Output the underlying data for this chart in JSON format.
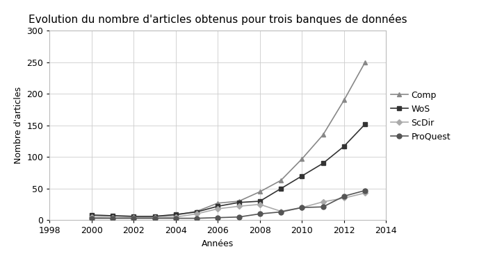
{
  "title": "Evolution du nombre d'articles obtenus pour trois banques de données",
  "xlabel": "Années",
  "ylabel": "Nombre d'articles",
  "years": [
    2000,
    2001,
    2002,
    2003,
    2004,
    2005,
    2006,
    2007,
    2008,
    2009,
    2010,
    2011,
    2012,
    2013
  ],
  "Comp": [
    8,
    7,
    6,
    6,
    8,
    14,
    27,
    30,
    45,
    63,
    97,
    135,
    190,
    250
  ],
  "WoS": [
    8,
    7,
    6,
    6,
    9,
    13,
    22,
    28,
    30,
    50,
    70,
    90,
    117,
    152
  ],
  "ScDir": [
    5,
    4,
    4,
    4,
    5,
    10,
    18,
    22,
    25,
    14,
    20,
    29,
    35,
    43
  ],
  "ProQuest": [
    3,
    3,
    3,
    3,
    3,
    3,
    4,
    5,
    10,
    13,
    20,
    21,
    38,
    47
  ],
  "xlim": [
    1998,
    2014
  ],
  "ylim": [
    0,
    300
  ],
  "yticks": [
    0,
    50,
    100,
    150,
    200,
    250,
    300
  ],
  "xticks": [
    1998,
    2000,
    2002,
    2004,
    2006,
    2008,
    2010,
    2012,
    2014
  ],
  "color_comp": "#888888",
  "color_wos": "#333333",
  "color_scdir": "#aaaaaa",
  "color_proquest": "#555555",
  "background_color": "#ffffff",
  "grid_color": "#cccccc",
  "title_fontsize": 11,
  "axis_fontsize": 9,
  "tick_fontsize": 9,
  "legend_fontsize": 9,
  "marker_size": 5,
  "line_width": 1.2
}
